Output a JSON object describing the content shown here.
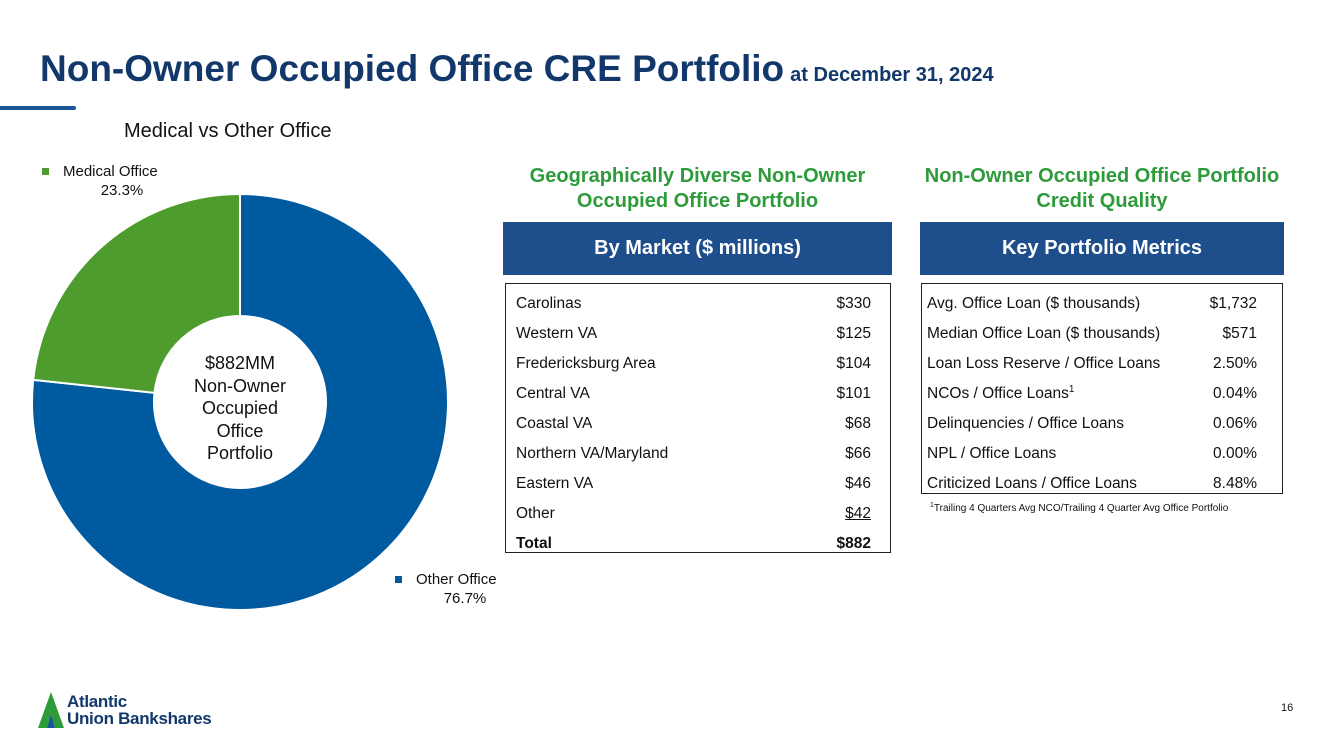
{
  "title": {
    "main": "Non-Owner Occupied Office CRE Portfolio",
    "sub": "at December 31, 2024"
  },
  "chart_data": {
    "type": "pie",
    "title": "Medical vs Other Office",
    "categories": [
      "Other Office",
      "Medical Office"
    ],
    "values": [
      76.7,
      23.3
    ],
    "labels": [
      "76.7%",
      "23.3%"
    ],
    "colors": [
      "#005aa0",
      "#4e9c2d"
    ],
    "center_label": [
      "$882MM",
      "Non-Owner",
      "Occupied",
      "Office",
      "Portfolio"
    ],
    "legend": [
      {
        "name": "Medical Office",
        "pct": "23.3%"
      },
      {
        "name": "Other Office",
        "pct": "76.7%"
      }
    ]
  },
  "market": {
    "heading": "Geographically Diverse Non-Owner Occupied Office Portfolio",
    "banner": "By Market ($ millions)",
    "rows": [
      {
        "label": "Carolinas",
        "value": "$330"
      },
      {
        "label": "Western VA",
        "value": "$125"
      },
      {
        "label": "Fredericksburg Area",
        "value": "$104"
      },
      {
        "label": "Central VA",
        "value": "$101"
      },
      {
        "label": "Coastal VA",
        "value": "$68"
      },
      {
        "label": "Northern VA/Maryland",
        "value": "$66"
      },
      {
        "label": "Eastern VA",
        "value": "$46"
      },
      {
        "label": "Other",
        "value": "$42"
      }
    ],
    "total": {
      "label": "Total",
      "value": "$882"
    }
  },
  "quality": {
    "heading": "Non-Owner Occupied Office Portfolio Credit Quality",
    "banner": "Key Portfolio Metrics",
    "rows": [
      {
        "label": "Avg. Office Loan ($ thousands)",
        "value": "$1,732"
      },
      {
        "label": "Median Office Loan ($ thousands)",
        "value": "$571"
      },
      {
        "label": "Loan Loss Reserve / Office Loans",
        "value": "2.50%"
      },
      {
        "label": "NCOs / Office Loans",
        "sup": "1",
        "value": "0.04%"
      },
      {
        "label": "Delinquencies / Office Loans",
        "value": "0.06%"
      },
      {
        "label": "NPL / Office Loans",
        "value": "0.00%"
      },
      {
        "label": "Criticized Loans / Office Loans",
        "value": "8.48%"
      }
    ],
    "footnote_mark": "1",
    "footnote": "Trailing 4 Quarters Avg NCO/Trailing 4 Quarter Avg Office Portfolio"
  },
  "logo": {
    "line1": "Atlantic",
    "line2": "Union Bankshares",
    "color": "#12386b",
    "mark_color": "#2e9b3a"
  },
  "page_number": "16"
}
